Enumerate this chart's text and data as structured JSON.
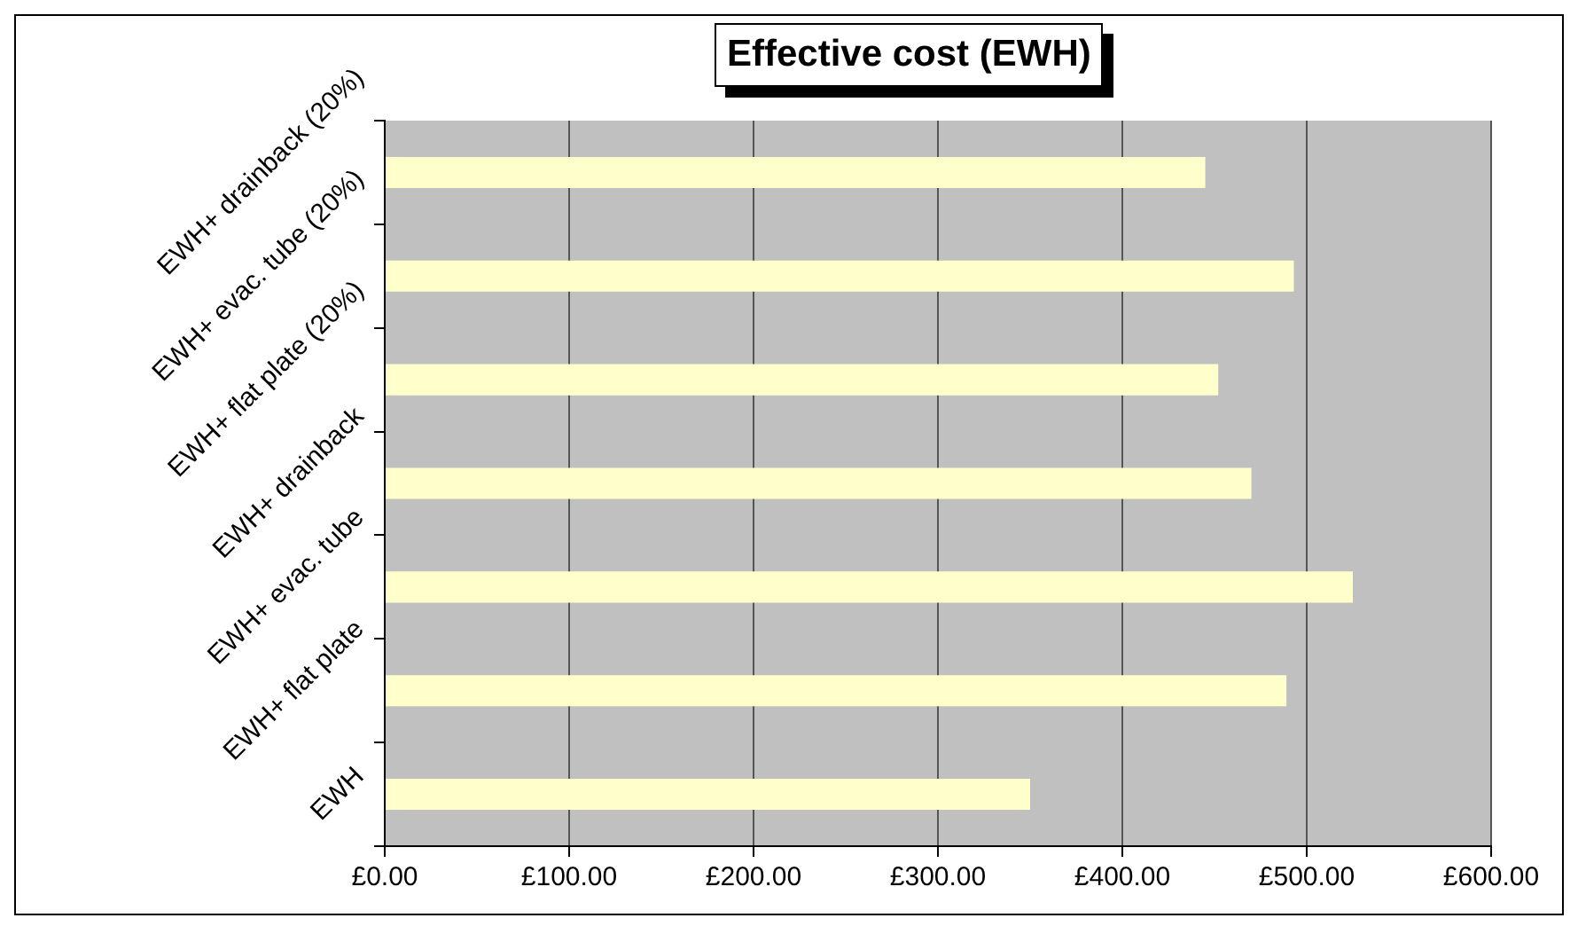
{
  "chart_data": {
    "type": "bar",
    "orientation": "horizontal",
    "title": "Effective cost (EWH)",
    "categories": [
      "EWH+ drainback (20%)",
      "EWH+ evac. tube (20%)",
      "EWH+ flat plate (20%)",
      "EWH+ drainback",
      "EWH+ evac. tube",
      "EWH+ flat plate",
      "EWH"
    ],
    "values": [
      445,
      493,
      452,
      470,
      525,
      489,
      350
    ],
    "color": "#ffffcc",
    "xlim": [
      0,
      600
    ],
    "xticks": [
      {
        "value": 0,
        "label": "£0.00"
      },
      {
        "value": 100,
        "label": "£100.00"
      },
      {
        "value": 200,
        "label": "£200.00"
      },
      {
        "value": 300,
        "label": "£300.00"
      },
      {
        "value": 400,
        "label": "£400.00"
      },
      {
        "value": 500,
        "label": "£500.00"
      },
      {
        "value": 600,
        "label": "£600.00"
      }
    ],
    "grid": "x",
    "legend": false
  }
}
